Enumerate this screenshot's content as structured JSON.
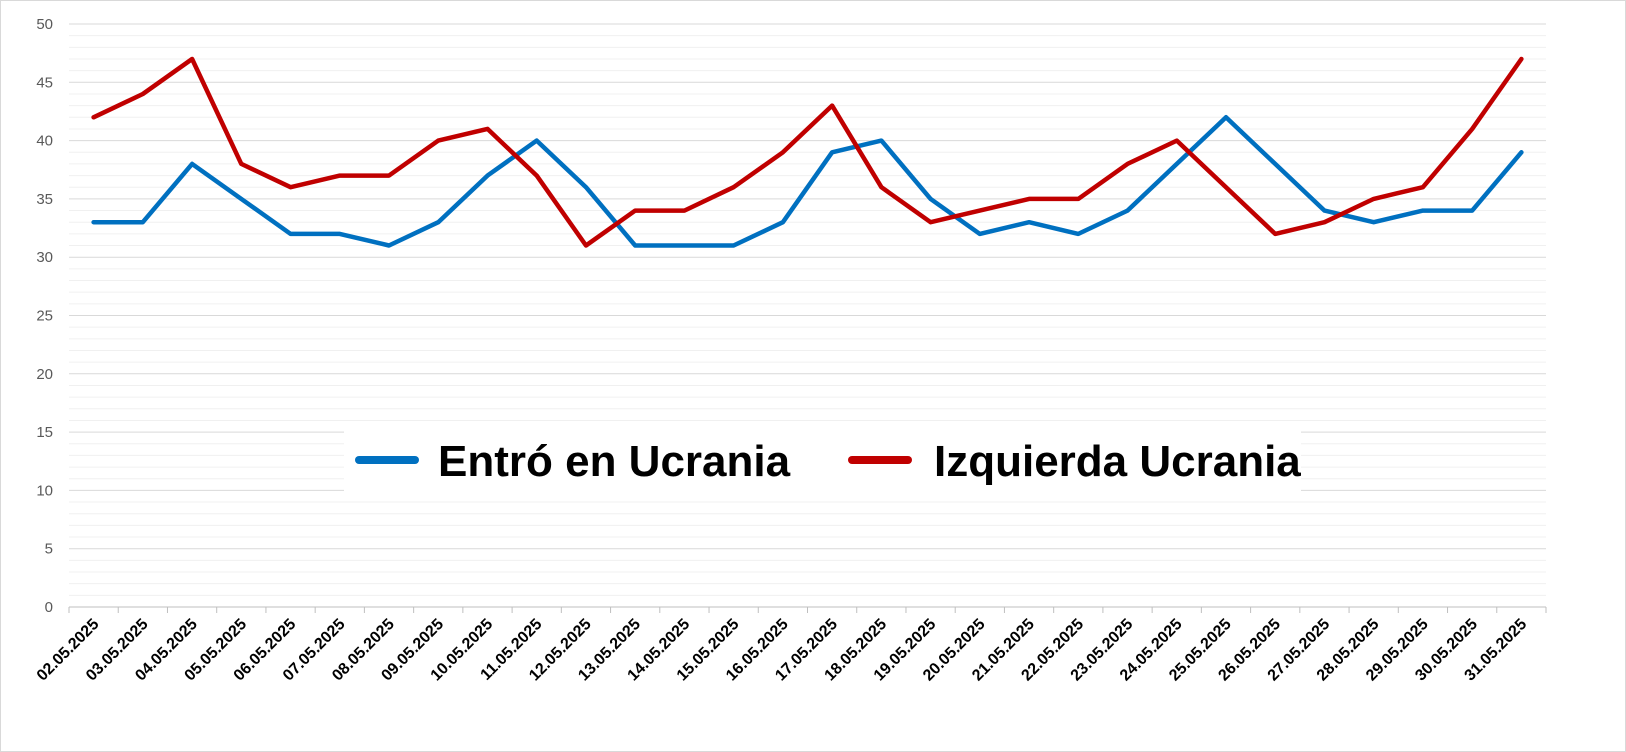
{
  "chart_data": {
    "type": "line",
    "categories": [
      "02.05.2025",
      "03.05.2025",
      "04.05.2025",
      "05.05.2025",
      "06.05.2025",
      "07.05.2025",
      "08.05.2025",
      "09.05.2025",
      "10.05.2025",
      "11.05.2025",
      "12.05.2025",
      "13.05.2025",
      "14.05.2025",
      "15.05.2025",
      "16.05.2025",
      "17.05.2025",
      "18.05.2025",
      "19.05.2025",
      "20.05.2025",
      "21.05.2025",
      "22.05.2025",
      "23.05.2025",
      "24.05.2025",
      "25.05.2025",
      "26.05.2025",
      "27.05.2025",
      "28.05.2025",
      "29.05.2025",
      "30.05.2025",
      "31.05.2025"
    ],
    "series": [
      {
        "name": "Entró en Ucrania",
        "color": "#0070c0",
        "values": [
          33,
          33,
          38,
          35,
          32,
          32,
          31,
          33,
          37,
          40,
          36,
          31,
          31,
          31,
          33,
          39,
          40,
          35,
          32,
          33,
          32,
          34,
          38,
          42,
          38,
          34,
          33,
          34,
          34,
          39
        ]
      },
      {
        "name": "Izquierda Ucrania",
        "color": "#c00000",
        "values": [
          42,
          44,
          47,
          38,
          36,
          37,
          37,
          40,
          41,
          37,
          31,
          34,
          34,
          36,
          39,
          43,
          36,
          33,
          34,
          35,
          35,
          38,
          40,
          36,
          32,
          33,
          35,
          36,
          41,
          47
        ]
      }
    ],
    "ylim": [
      0,
      50
    ],
    "yticks": [
      0,
      5,
      10,
      15,
      20,
      25,
      30,
      35,
      40,
      45,
      50
    ],
    "grid": true,
    "legend": "center"
  }
}
